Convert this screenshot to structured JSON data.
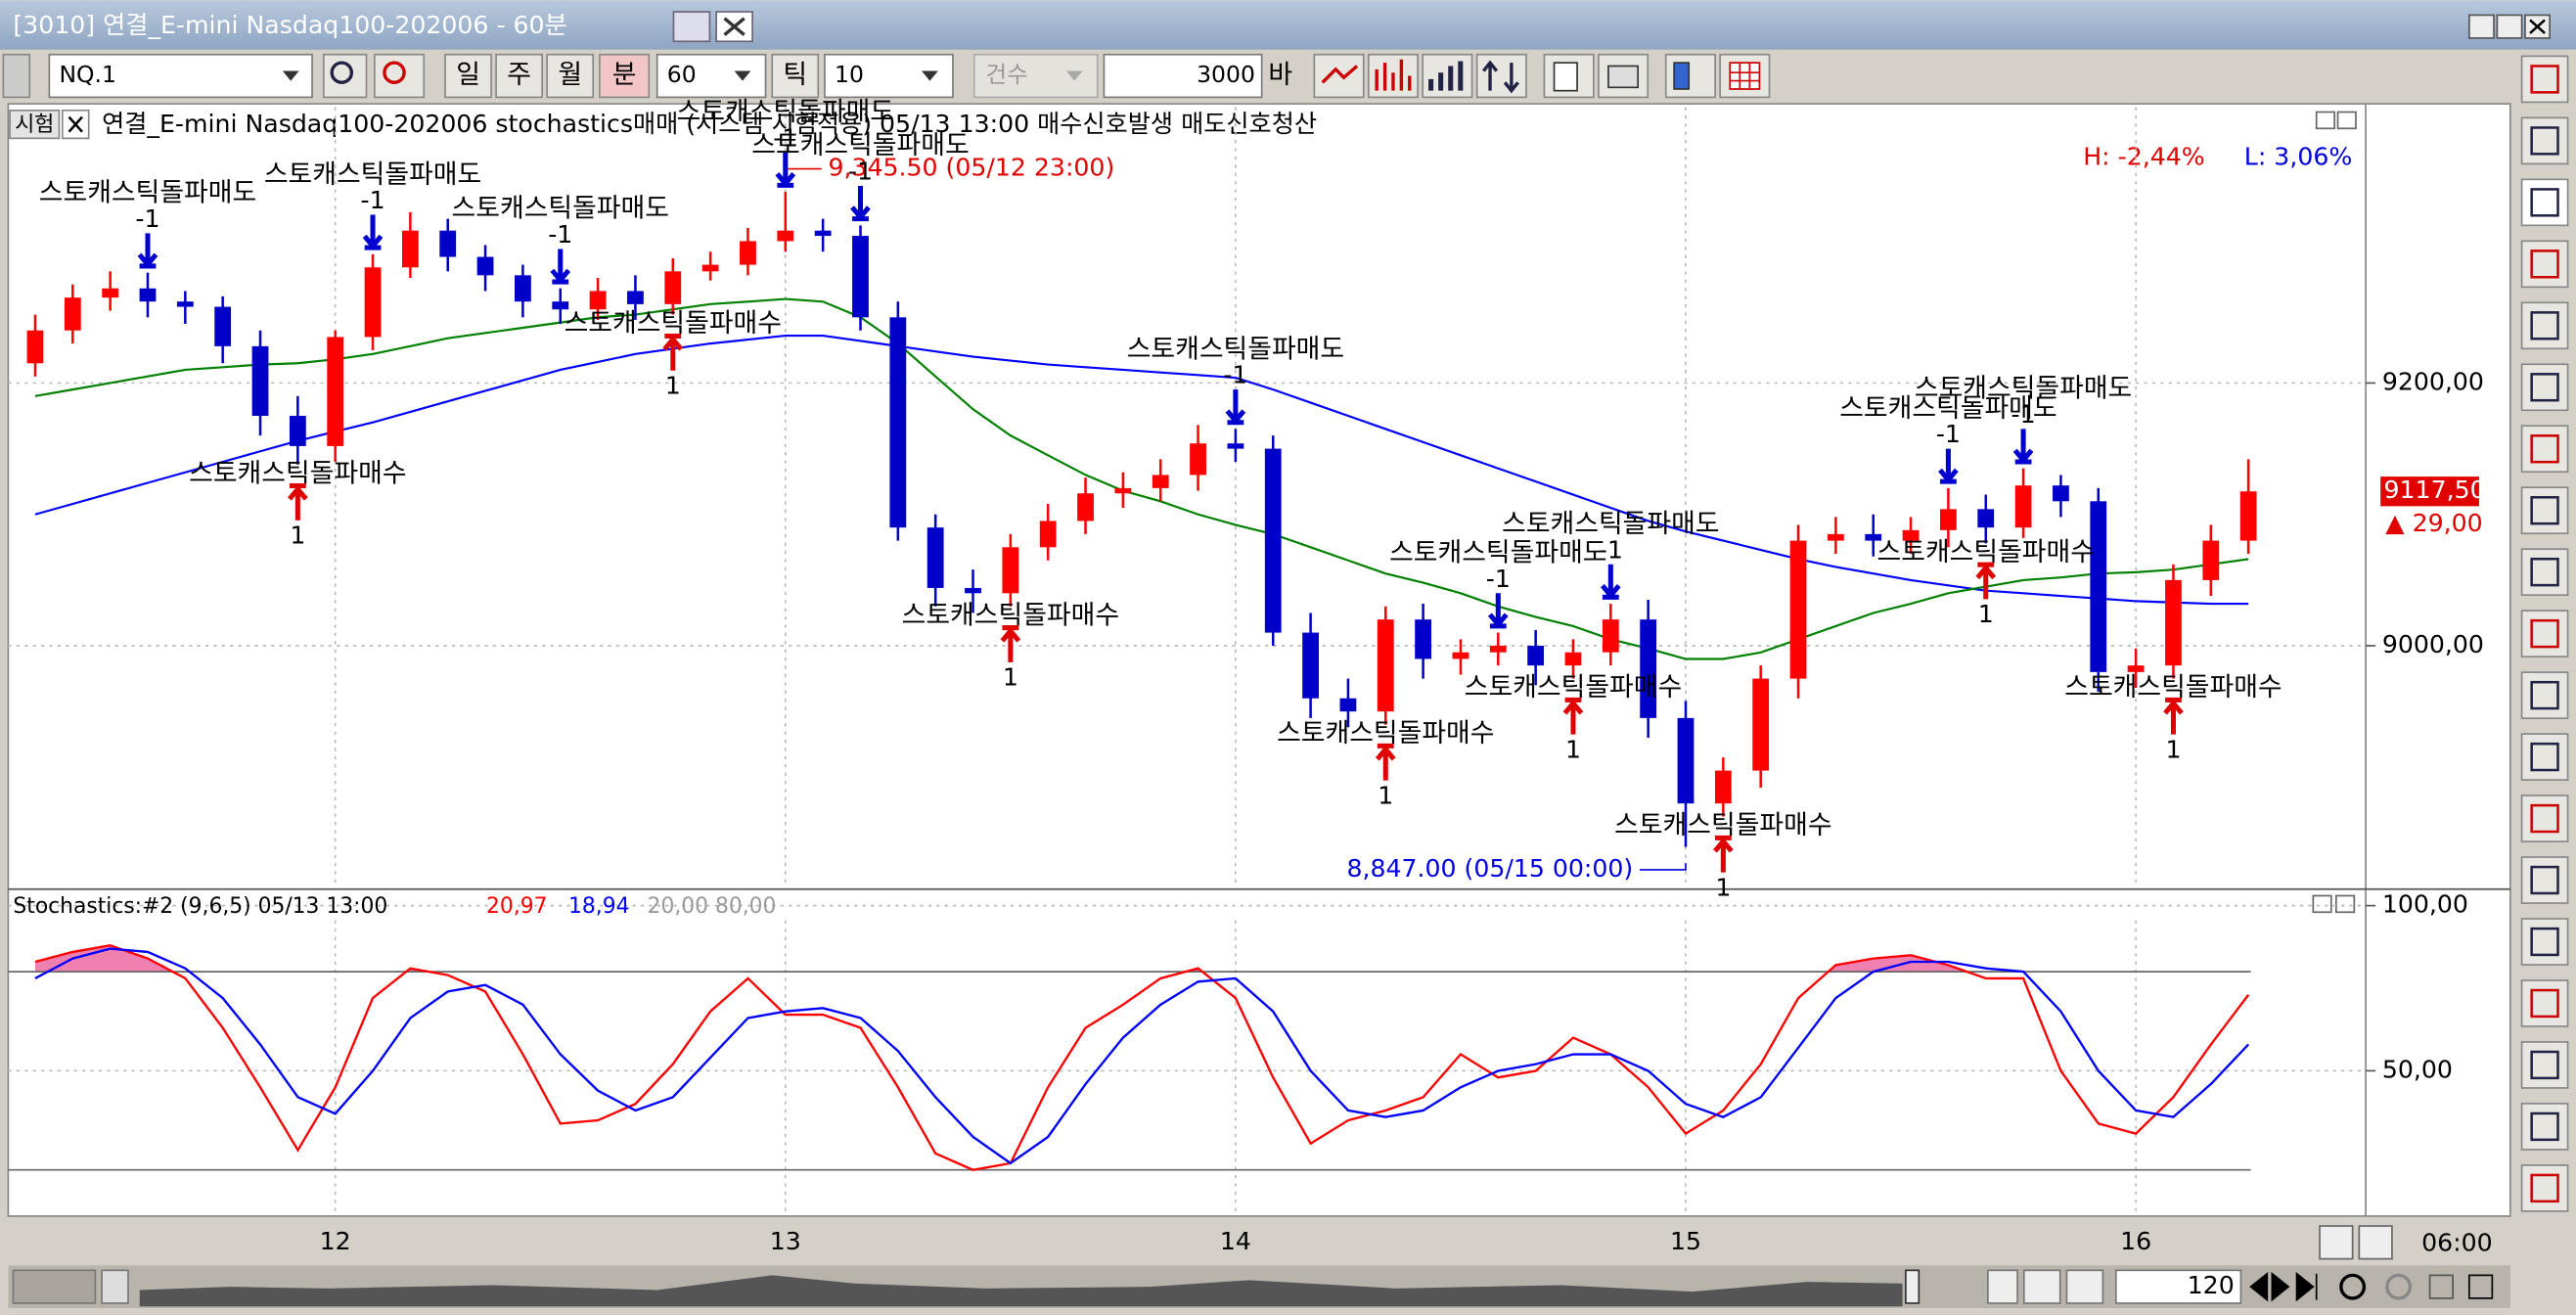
{
  "window": {
    "title": "[3010] 연결_E-mini Nasdaq100-202006 - 60분"
  },
  "toolbar": {
    "symbol": "NQ.1",
    "periods": [
      "일",
      "주",
      "월",
      "분"
    ],
    "interval": "60",
    "tick_label": "틱",
    "tick_count": "10",
    "count_label": "건수",
    "bars": "3000",
    "bars_unit": "바"
  },
  "status": {
    "tag": "시험",
    "description": "연결_E-mini Nasdaq100-202006 stochastics매매 (시스템 시험적용) 05/13 13:00 매수신호발생 매도신호청산",
    "high": "H: -2,44%",
    "low": "L: 3,06%"
  },
  "chart_data": [
    {
      "type": "candlestick",
      "categories": [
        null,
        null,
        null,
        null,
        null,
        null,
        null,
        null,
        "12",
        null,
        null,
        null,
        null,
        null,
        null,
        null,
        null,
        null,
        null,
        null,
        "13",
        null,
        null,
        null,
        null,
        null,
        null,
        null,
        null,
        null,
        null,
        null,
        "14",
        null,
        null,
        null,
        null,
        null,
        null,
        null,
        null,
        null,
        null,
        null,
        "15",
        null,
        null,
        null,
        null,
        null,
        null,
        null,
        null,
        null,
        null,
        null,
        "16",
        null,
        null,
        null
      ],
      "open": [
        9215,
        9240,
        9265,
        9272,
        9262,
        9258,
        9228,
        9175,
        9152,
        9235,
        9288,
        9316,
        9296,
        9282,
        9262,
        9256,
        9270,
        9260,
        9285,
        9290,
        9308,
        9316,
        9312,
        9250,
        9090,
        9044,
        9040,
        9075,
        9095,
        9116,
        9120,
        9130,
        9154,
        9150,
        9010,
        8960,
        8950,
        9020,
        8990,
        8995,
        9000,
        8985,
        8995,
        9020,
        8945,
        8880,
        8905,
        8975,
        9080,
        9085,
        9080,
        9088,
        9104,
        9090,
        9122,
        9110,
        8980,
        8985,
        9050,
        9080
      ],
      "high": [
        9252,
        9275,
        9285,
        9284,
        9270,
        9266,
        9240,
        9190,
        9240,
        9298,
        9330,
        9325,
        9305,
        9290,
        9272,
        9280,
        9282,
        9295,
        9300,
        9318,
        9345.5,
        9325,
        9320,
        9262,
        9100,
        9058,
        9085,
        9108,
        9128,
        9132,
        9142,
        9168,
        9165,
        9160,
        9025,
        8975,
        9030,
        9032,
        9005,
        9010,
        9012,
        9005,
        9032,
        9035,
        8958,
        8915,
        8985,
        9092,
        9098,
        9100,
        9098,
        9120,
        9115,
        9135,
        9130,
        9120,
        8998,
        9062,
        9092,
        9142
      ],
      "low": [
        9205,
        9230,
        9255,
        9250,
        9245,
        9215,
        9160,
        9138,
        9140,
        9225,
        9280,
        9285,
        9270,
        9250,
        9245,
        9248,
        9248,
        9252,
        9278,
        9282,
        9300,
        9300,
        9240,
        9080,
        9030,
        9025,
        9030,
        9065,
        9085,
        9105,
        9110,
        9118,
        9140,
        9000,
        8945,
        8938,
        8940,
        8975,
        8978,
        8985,
        8970,
        8975,
        8985,
        8930,
        8847,
        8870,
        8892,
        8960,
        9070,
        9068,
        9070,
        9075,
        9078,
        9082,
        9098,
        8965,
        8968,
        8975,
        9038,
        9070
      ],
      "close": [
        9240,
        9265,
        9272,
        9262,
        9258,
        9228,
        9175,
        9152,
        9235,
        9288,
        9316,
        9296,
        9282,
        9262,
        9256,
        9270,
        9260,
        9285,
        9290,
        9308,
        9316,
        9312,
        9250,
        9090,
        9044,
        9040,
        9075,
        9095,
        9116,
        9120,
        9130,
        9154,
        9150,
        9010,
        8960,
        8950,
        9020,
        8990,
        8995,
        9000,
        8985,
        8995,
        9020,
        8945,
        8880,
        8905,
        8975,
        9080,
        9085,
        9080,
        9088,
        9104,
        9090,
        9122,
        9110,
        8980,
        8985,
        9050,
        9080,
        9117.5
      ],
      "up_color": "#ff0000",
      "down_color": "#0000c8",
      "series": [
        {
          "color": "#0000ff",
          "values": [
            9100,
            9108,
            9116,
            9124,
            9132,
            9140,
            9148,
            9156,
            9163,
            9170,
            9178,
            9186,
            9194,
            9202,
            9210,
            9216,
            9222,
            9226,
            9230,
            9233,
            9236,
            9236,
            9232,
            9228,
            9224,
            9220,
            9217,
            9214,
            9212,
            9210,
            9208,
            9206,
            9204,
            9195,
            9185,
            9175,
            9165,
            9155,
            9145,
            9135,
            9125,
            9115,
            9105,
            9095,
            9087,
            9080,
            9073,
            9066,
            9060,
            9055,
            9050,
            9046,
            9042,
            9040,
            9038,
            9036,
            9034,
            9033,
            9032,
            9032
          ]
        },
        {
          "color": "#008000",
          "values": [
            9190,
            9195,
            9200,
            9205,
            9210,
            9212,
            9214,
            9215,
            9218,
            9222,
            9228,
            9234,
            9238,
            9242,
            9246,
            9250,
            9252,
            9256,
            9260,
            9262,
            9264,
            9262,
            9250,
            9230,
            9205,
            9180,
            9160,
            9145,
            9130,
            9118,
            9110,
            9100,
            9092,
            9085,
            9075,
            9065,
            9055,
            9048,
            9040,
            9030,
            9022,
            9015,
            9005,
            8998,
            8990,
            8990,
            8995,
            9005,
            9015,
            9025,
            9032,
            9040,
            9045,
            9050,
            9052,
            9055,
            9056,
            9058,
            9062,
            9066
          ]
        }
      ],
      "sell_signals": [
        null,
        null,
        null,
        {
          "label": "스토캐스틱돌파매도",
          "qty": -1
        },
        null,
        null,
        null,
        null,
        null,
        {
          "label": "스토캐스틱돌파매도",
          "qty": -1
        },
        null,
        null,
        null,
        null,
        {
          "label": "스토캐스틱돌파매도",
          "qty": -1
        },
        null,
        null,
        null,
        null,
        null,
        {
          "label": "스토캐스틱돌파매도",
          "qty": -1
        },
        null,
        {
          "label": "스토캐스틱돌파매도",
          "qty": -1
        },
        null,
        null,
        null,
        null,
        null,
        null,
        null,
        null,
        null,
        {
          "label": "스토캐스틱돌파매도",
          "qty": -1
        },
        null,
        null,
        null,
        null,
        null,
        null,
        {
          "label": "스토캐스틱돌파매도",
          "qty": -1
        },
        null,
        null,
        {
          "label": "스토캐스틱돌파매도",
          "qty": -1
        },
        null,
        null,
        null,
        null,
        null,
        null,
        null,
        null,
        {
          "label": "스토캐스틱돌파매도",
          "qty": -1
        },
        null,
        {
          "label": "스토캐스틱돌파매도",
          "qty": -1
        },
        null,
        null,
        null,
        null,
        null,
        null
      ],
      "buy_signals": [
        null,
        null,
        null,
        null,
        null,
        null,
        null,
        {
          "label": "스토캐스틱돌파매수",
          "qty": 1
        },
        null,
        null,
        null,
        null,
        null,
        null,
        null,
        null,
        null,
        {
          "label": "스토캐스틱돌파매수",
          "qty": 1
        },
        null,
        null,
        null,
        null,
        null,
        null,
        null,
        null,
        {
          "label": "스토캐스틱돌파매수",
          "qty": 1
        },
        null,
        null,
        null,
        null,
        null,
        null,
        null,
        null,
        null,
        {
          "label": "스토캐스틱돌파매수",
          "qty": 1
        },
        null,
        null,
        null,
        null,
        {
          "label": "스토캐스틱돌파매수",
          "qty": 1
        },
        null,
        null,
        null,
        {
          "label": "스토캐스틱돌파매수",
          "qty": 1
        },
        null,
        null,
        null,
        null,
        null,
        null,
        {
          "label": "스토캐스틱돌파매수",
          "qty": 1
        },
        null,
        null,
        null,
        null,
        {
          "label": "스토캐스틱돌파매수",
          "qty": 1
        },
        null,
        null
      ],
      "high_label": "9,345.50 (05/12 23:00)",
      "low_label": "8,847.00 (05/15 00:00)",
      "last_price": {
        "value": 9117.5,
        "label": "9117,50"
      },
      "change": "▲ 29,00",
      "ylim": [
        8816,
        9410
      ],
      "yticks": [
        {
          "value": 9000,
          "label": "9000,00"
        },
        {
          "value": 9200,
          "label": "9200,00"
        }
      ],
      "grid": true
    },
    {
      "type": "line",
      "title": "Stochastics:#2  (9,6,5) 05/13 13:00",
      "series": [
        {
          "color": "#ff0000",
          "current": "20,97",
          "values": [
            83,
            86,
            88,
            84,
            78,
            63,
            45,
            26,
            45,
            72,
            81,
            79,
            74,
            55,
            34,
            35,
            40,
            52,
            68,
            78,
            67,
            67,
            63,
            45,
            25,
            20,
            22,
            45,
            63,
            70,
            78,
            81,
            72,
            48,
            28,
            35,
            38,
            42,
            55,
            48,
            50,
            60,
            55,
            45,
            31,
            38,
            52,
            72,
            82,
            84,
            85,
            82,
            78,
            78,
            50,
            34,
            31,
            42,
            58,
            73
          ]
        },
        {
          "color": "#0000ff",
          "current": "18,94",
          "values": [
            78,
            84,
            87,
            86,
            81,
            72,
            58,
            42,
            37,
            50,
            66,
            74,
            76,
            70,
            55,
            44,
            38,
            42,
            54,
            66,
            68,
            69,
            66,
            56,
            42,
            30,
            22,
            30,
            46,
            60,
            70,
            77,
            78,
            68,
            50,
            38,
            36,
            38,
            45,
            50,
            52,
            55,
            55,
            50,
            40,
            36,
            42,
            57,
            72,
            80,
            83,
            83,
            81,
            80,
            68,
            50,
            38,
            36,
            46,
            58
          ]
        }
      ],
      "levels": [
        20,
        80
      ],
      "levels_label": "20,00 80,00",
      "ylim": [
        7,
        103
      ],
      "yticks": [
        {
          "value": 50,
          "label": "50,00"
        },
        {
          "value": 100,
          "label": "100,00"
        }
      ],
      "grid": true
    }
  ],
  "footer": {
    "time": "06:00",
    "zoom": "120"
  }
}
